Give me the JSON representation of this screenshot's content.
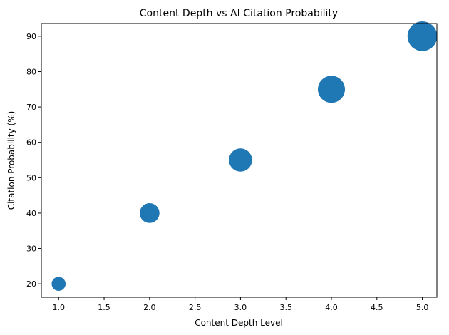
{
  "chart_data": {
    "type": "scatter",
    "title": "Content Depth vs AI Citation Probability",
    "xlabel": "Content Depth Level",
    "ylabel": "Citation Probability (%)",
    "x": [
      1,
      2,
      3,
      4,
      5
    ],
    "y": [
      20,
      40,
      55,
      75,
      90
    ],
    "marker_sizes": [
      200,
      400,
      550,
      750,
      900
    ],
    "color": "#1f77b4",
    "xlim": [
      0.81,
      5.16
    ],
    "ylim": [
      16.2,
      93.6
    ],
    "xticks": [
      "1.0",
      "1.5",
      "2.0",
      "2.5",
      "3.0",
      "3.5",
      "4.0",
      "4.5",
      "5.0"
    ],
    "yticks": [
      "20",
      "30",
      "40",
      "50",
      "60",
      "70",
      "80",
      "90"
    ],
    "grid": false,
    "legend": "none"
  }
}
